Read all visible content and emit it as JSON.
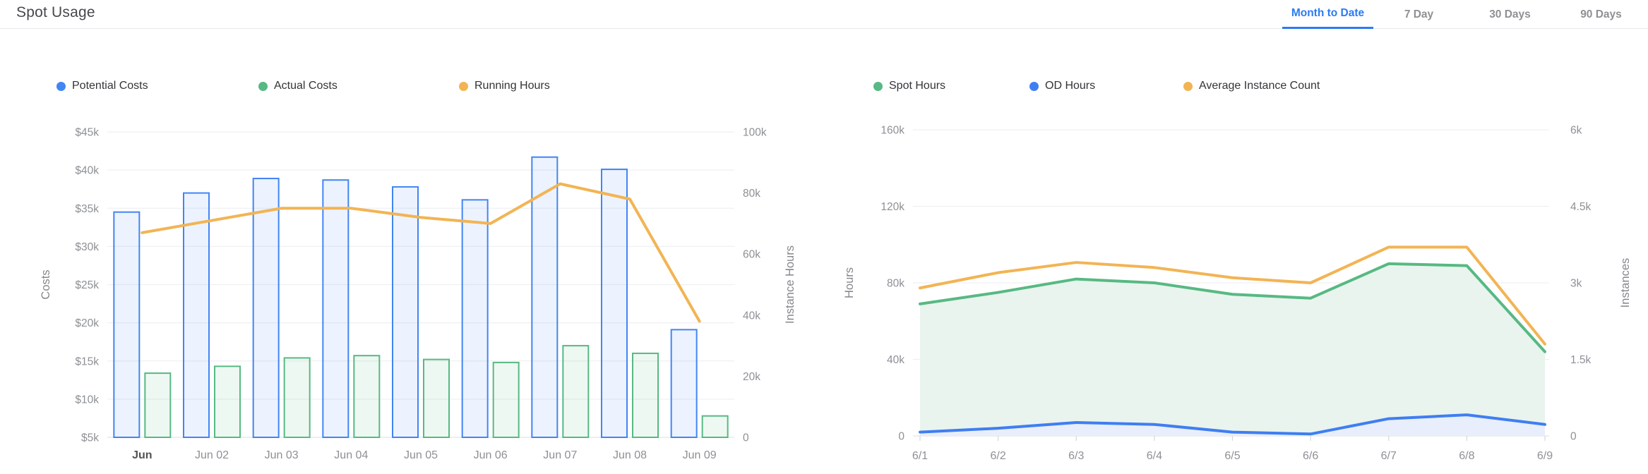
{
  "header": {
    "title": "Spot Usage",
    "tabs": [
      {
        "label": "Month to Date",
        "active": true
      },
      {
        "label": "7 Day",
        "active": false
      },
      {
        "label": "30 Days",
        "active": false
      },
      {
        "label": "90 Days",
        "active": false
      }
    ]
  },
  "chart_data": [
    {
      "type": "bar+line",
      "categories": [
        "Jun",
        "Jun 02",
        "Jun 03",
        "Jun 04",
        "Jun 05",
        "Jun 06",
        "Jun 07",
        "Jun 08",
        "Jun 09"
      ],
      "series": [
        {
          "name": "Potential Costs",
          "type": "bar",
          "axis": "left",
          "color": "#4285f4",
          "fill": "rgba(66,133,244,0.10)",
          "values": [
            34500,
            37000,
            38900,
            38700,
            37800,
            36100,
            41700,
            40100,
            19100
          ]
        },
        {
          "name": "Actual Costs",
          "type": "bar",
          "axis": "left",
          "color": "#57b983",
          "fill": "rgba(87,185,131,0.10)",
          "values": [
            13400,
            14300,
            15400,
            15700,
            15200,
            14800,
            17000,
            16000,
            7800
          ]
        },
        {
          "name": "Running Hours",
          "type": "line",
          "axis": "right",
          "color": "#f2b453",
          "values": [
            67000,
            71000,
            75000,
            75000,
            72000,
            70000,
            83000,
            78000,
            38000
          ]
        }
      ],
      "left_axis": {
        "title": "Costs",
        "min": 5000,
        "max": 45000,
        "tick_labels": [
          "$5k",
          "$10k",
          "$15k",
          "$20k",
          "$25k",
          "$30k",
          "$35k",
          "$40k",
          "$45k"
        ]
      },
      "right_axis": {
        "title": "Instance Hours",
        "min": 0,
        "max": 100000,
        "tick_labels": [
          "0",
          "20k",
          "40k",
          "60k",
          "80k",
          "100k"
        ]
      },
      "legend_position": "top",
      "grid": true
    },
    {
      "type": "area+line",
      "categories": [
        "6/1",
        "6/2",
        "6/3",
        "6/4",
        "6/5",
        "6/6",
        "6/7",
        "6/8",
        "6/9"
      ],
      "series": [
        {
          "name": "Spot Hours",
          "type": "area",
          "axis": "left",
          "color": "#57b983",
          "fill": "#e9f4ee",
          "values": [
            69000,
            75000,
            82000,
            80000,
            74000,
            72000,
            90000,
            89000,
            44000
          ]
        },
        {
          "name": "OD Hours",
          "type": "area",
          "axis": "left",
          "color": "#3f7ef2",
          "fill": "#e8eefb",
          "values": [
            2000,
            4000,
            7000,
            6000,
            2000,
            1000,
            9000,
            11000,
            6000
          ]
        },
        {
          "name": "Average Instance Count",
          "type": "line",
          "axis": "right",
          "color": "#f2b453",
          "values": [
            2900,
            3200,
            3400,
            3300,
            3100,
            3000,
            3700,
            3700,
            1800
          ]
        }
      ],
      "left_axis": {
        "title": "Hours",
        "min": 0,
        "max": 160000,
        "tick_labels": [
          "0",
          "40k",
          "80k",
          "120k",
          "160k"
        ]
      },
      "right_axis": {
        "title": "Instances",
        "min": 0,
        "max": 6000,
        "tick_labels": [
          "0",
          "1.5k",
          "3k",
          "4.5k",
          "6k"
        ]
      },
      "legend_position": "top",
      "grid": true
    }
  ]
}
